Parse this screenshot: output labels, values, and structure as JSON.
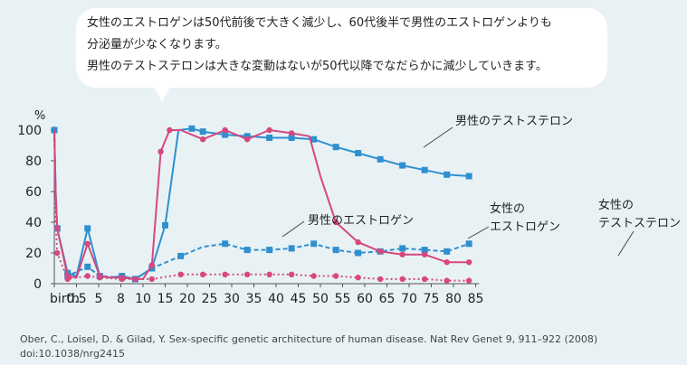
{
  "callout": {
    "lines": [
      "女性のエストロゲンは50代前後で大きく減少し、60代後半で男性のエストロゲンよりも",
      "分泌量が少なくなります。",
      "男性のテストステロンは大きな変動はないが50代以降でなだらかに減少していきます。"
    ]
  },
  "citation": {
    "line1": "Ober, C., Loisel, D. & Gilad, Y. Sex-specific genetic architecture of human disease. Nat Rev Genet 9, 911–922 (2008)",
    "line2": "doi:10.1038/nrg2415"
  },
  "chart_data": {
    "type": "line",
    "ylabel": "%",
    "ylim": [
      0,
      100
    ],
    "yticks": [
      0,
      20,
      40,
      60,
      80,
      100
    ],
    "xticks": [
      "birth",
      "0.5",
      "5",
      "8",
      "10",
      "15",
      "20",
      "25",
      "30",
      "35",
      "40",
      "45",
      "50",
      "55",
      "60",
      "65",
      "70",
      "75",
      "80",
      "85"
    ],
    "grid": false,
    "series": [
      {
        "name": "男性のテストステロン",
        "color": "#2f8fcf",
        "line_style": "solid",
        "marker": "square",
        "x": [
          0.0,
          0.06,
          0.13,
          0.6,
          1.0,
          1.5,
          2.05,
          2.5,
          3.05,
          3.65,
          4.4,
          5.0,
          5.6,
          6.2,
          6.7,
          7.7,
          8.7,
          9.7,
          10.7,
          11.7,
          12.7,
          13.7,
          14.7,
          15.7,
          16.7,
          17.7,
          18.7
        ],
        "y": [
          100,
          60,
          36,
          7,
          5,
          36,
          5,
          4,
          5,
          3,
          10,
          38,
          100,
          101,
          99,
          97,
          96,
          95,
          95,
          94,
          89,
          85,
          81,
          77,
          74,
          71,
          70
        ],
        "markers": [
          0,
          2,
          3,
          5,
          6,
          8,
          9,
          10,
          11,
          13,
          14,
          15,
          16,
          17,
          18,
          19,
          20,
          21,
          22,
          23,
          24,
          25,
          26
        ]
      },
      {
        "name": "男性のエストロゲン",
        "color": "#2f8fcf",
        "line_style": "dashed",
        "marker": "square",
        "x": [
          0.0,
          0.06,
          0.13,
          0.6,
          1.5,
          2.05,
          3.05,
          3.65,
          4.4,
          5.7,
          6.7,
          7.7,
          8.7,
          9.7,
          10.7,
          11.7,
          12.7,
          13.7,
          14.7,
          15.7,
          16.7,
          17.7,
          18.7
        ],
        "y": [
          100,
          55,
          36,
          5,
          11,
          5,
          4,
          3,
          10,
          18,
          24,
          26,
          22,
          22,
          23,
          26,
          22,
          20,
          21,
          23,
          22,
          21,
          26
        ],
        "markers": [
          2,
          3,
          4,
          5,
          6,
          7,
          8,
          9,
          11,
          12,
          13,
          14,
          15,
          16,
          17,
          18,
          19,
          20,
          21,
          22
        ]
      },
      {
        "name": "女性のエストロゲン",
        "color": "#d6487e",
        "line_style": "solid",
        "marker": "circle",
        "x": [
          0.0,
          0.06,
          0.13,
          0.6,
          1.0,
          1.5,
          2.05,
          2.5,
          3.05,
          3.65,
          4.0,
          4.4,
          4.8,
          5.2,
          5.7,
          6.7,
          7.7,
          8.7,
          9.7,
          10.7,
          11.5,
          12.0,
          12.7,
          13.7,
          14.7,
          15.7,
          16.7,
          17.7,
          18.7
        ],
        "y": [
          100,
          60,
          36,
          5,
          4,
          26,
          5,
          4,
          4,
          3,
          3,
          12,
          86,
          100,
          100,
          94,
          100,
          94,
          100,
          98,
          96,
          70,
          40,
          27,
          21,
          19,
          19,
          14,
          14
        ],
        "markers": [
          2,
          3,
          5,
          6,
          8,
          9,
          11,
          12,
          13,
          15,
          16,
          17,
          18,
          19,
          22,
          23,
          24,
          25,
          26,
          27,
          28
        ]
      },
      {
        "name": "女性のテストステロン",
        "color": "#d6487e",
        "line_style": "dotted",
        "marker": "circle",
        "x": [
          0.0,
          0.06,
          0.13,
          0.6,
          1.5,
          2.05,
          3.05,
          3.65,
          4.4,
          5.7,
          6.7,
          7.7,
          8.7,
          9.7,
          10.7,
          11.7,
          12.7,
          13.7,
          14.7,
          15.7,
          16.7,
          17.7,
          18.7
        ],
        "y": [
          100,
          40,
          20,
          3,
          5,
          4,
          3,
          3,
          3,
          6,
          6,
          6,
          6,
          6,
          6,
          5,
          5,
          4,
          3,
          3,
          3,
          2,
          2
        ],
        "markers": [
          2,
          3,
          4,
          5,
          6,
          7,
          8,
          9,
          10,
          11,
          12,
          13,
          14,
          15,
          16,
          17,
          18,
          19,
          20,
          21,
          22
        ]
      }
    ]
  }
}
